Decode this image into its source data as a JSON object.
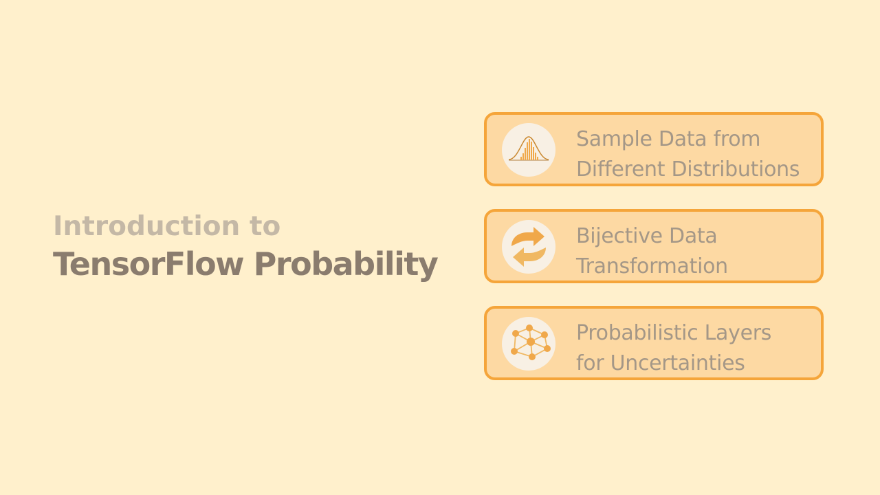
{
  "title": {
    "line1": "Introduction to",
    "line2": "TensorFlow Probability"
  },
  "colors": {
    "background": "#fff0cc",
    "card_fill": "#fdd9a3",
    "card_border": "#f5a53a",
    "icon_circle": "#f8f0e4",
    "icon_accent": "#f0a84a",
    "title_light": "#c4b8a6",
    "title_dark": "#8a7c6e",
    "card_text": "#a49787"
  },
  "cards": [
    {
      "icon": "normal-distribution-icon",
      "line1": "Sample Data from",
      "line2": "Different Distributions"
    },
    {
      "icon": "bijective-arrows-icon",
      "line1": "Bijective Data",
      "line2": "Transformation"
    },
    {
      "icon": "neural-network-icon",
      "line1": "Probabilistic Layers",
      "line2": "for Uncertainties"
    }
  ]
}
